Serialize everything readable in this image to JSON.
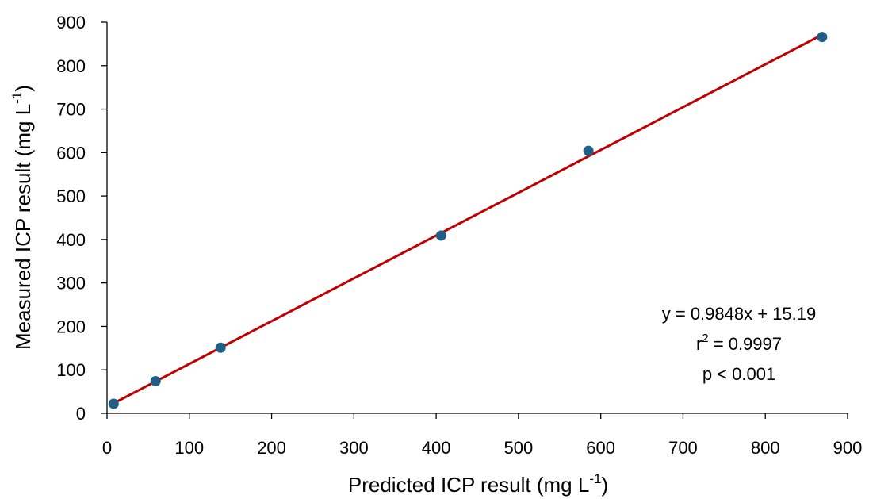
{
  "chart_data": {
    "type": "scatter",
    "xlabel": "Predicted ICP result (mg L",
    "xlabel_sup": "-1",
    "xlabel_end": ")",
    "ylabel": "Measured ICP result (mg L",
    "ylabel_sup": "-1",
    "ylabel_end": ")",
    "xlim": [
      0,
      900
    ],
    "ylim": [
      0,
      900
    ],
    "xticks": [
      "0",
      "100",
      "200",
      "300",
      "400",
      "500",
      "600",
      "700",
      "800",
      "900"
    ],
    "yticks": [
      "0",
      "100",
      "200",
      "300",
      "400",
      "500",
      "600",
      "700",
      "800",
      "900"
    ],
    "grid": false,
    "points": [
      {
        "x": 8,
        "y": 22
      },
      {
        "x": 59,
        "y": 74
      },
      {
        "x": 138,
        "y": 151
      },
      {
        "x": 406,
        "y": 409
      },
      {
        "x": 585,
        "y": 604
      },
      {
        "x": 869,
        "y": 866
      }
    ],
    "trendline": {
      "slope": 0.9848,
      "intercept": 15.19,
      "x_range": [
        8,
        869
      ]
    },
    "colors": {
      "points": "#1f5f86",
      "trendline": "#c00000"
    },
    "annotation": {
      "equation": "y = 0.9848x + 15.19",
      "r2_prefix": "r",
      "r2_sup": "2",
      "r2_value": " = 0.9997",
      "p_value": "p < 0.001"
    }
  }
}
